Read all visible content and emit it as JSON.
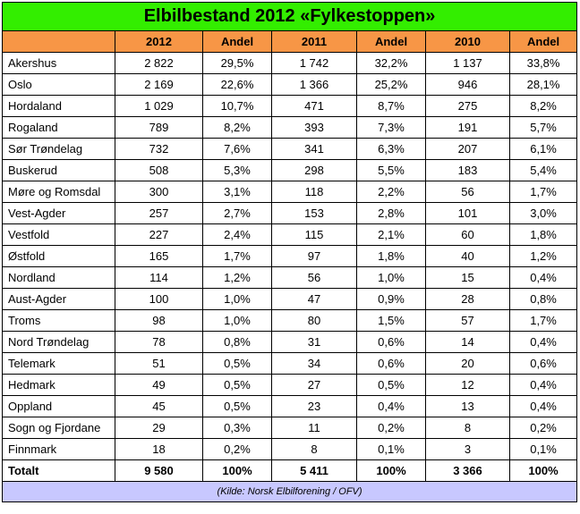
{
  "title": "Elbilbestand 2012 «Fylkestoppen»",
  "headers": [
    "",
    "2012",
    "Andel",
    "2011",
    "Andel",
    "2010",
    "Andel"
  ],
  "rows": [
    [
      "Akershus",
      "2 822",
      "29,5%",
      "1 742",
      "32,2%",
      "1 137",
      "33,8%"
    ],
    [
      "Oslo",
      "2 169",
      "22,6%",
      "1 366",
      "25,2%",
      "946",
      "28,1%"
    ],
    [
      "Hordaland",
      "1 029",
      "10,7%",
      "471",
      "8,7%",
      "275",
      "8,2%"
    ],
    [
      "Rogaland",
      "789",
      "8,2%",
      "393",
      "7,3%",
      "191",
      "5,7%"
    ],
    [
      "Sør Trøndelag",
      "732",
      "7,6%",
      "341",
      "6,3%",
      "207",
      "6,1%"
    ],
    [
      "Buskerud",
      "508",
      "5,3%",
      "298",
      "5,5%",
      "183",
      "5,4%"
    ],
    [
      "Møre og Romsdal",
      "300",
      "3,1%",
      "118",
      "2,2%",
      "56",
      "1,7%"
    ],
    [
      "Vest-Agder",
      "257",
      "2,7%",
      "153",
      "2,8%",
      "101",
      "3,0%"
    ],
    [
      "Vestfold",
      "227",
      "2,4%",
      "115",
      "2,1%",
      "60",
      "1,8%"
    ],
    [
      "Østfold",
      "165",
      "1,7%",
      "97",
      "1,8%",
      "40",
      "1,2%"
    ],
    [
      "Nordland",
      "114",
      "1,2%",
      "56",
      "1,0%",
      "15",
      "0,4%"
    ],
    [
      "Aust-Agder",
      "100",
      "1,0%",
      "47",
      "0,9%",
      "28",
      "0,8%"
    ],
    [
      "Troms",
      "98",
      "1,0%",
      "80",
      "1,5%",
      "57",
      "1,7%"
    ],
    [
      "Nord Trøndelag",
      "78",
      "0,8%",
      "31",
      "0,6%",
      "14",
      "0,4%"
    ],
    [
      "Telemark",
      "51",
      "0,5%",
      "34",
      "0,6%",
      "20",
      "0,6%"
    ],
    [
      "Hedmark",
      "49",
      "0,5%",
      "27",
      "0,5%",
      "12",
      "0,4%"
    ],
    [
      "Oppland",
      "45",
      "0,5%",
      "23",
      "0,4%",
      "13",
      "0,4%"
    ],
    [
      "Sogn og Fjordane",
      "29",
      "0,3%",
      "11",
      "0,2%",
      "8",
      "0,2%"
    ],
    [
      "Finnmark",
      "18",
      "0,2%",
      "8",
      "0,1%",
      "3",
      "0,1%"
    ]
  ],
  "total": [
    "Totalt",
    "9 580",
    "100%",
    "5 411",
    "100%",
    "3 366",
    "100%"
  ],
  "source": "(Kilde: Norsk Elbilforening / OFV)",
  "colors": {
    "title_bg": "#33ee00",
    "header_bg": "#f79646",
    "source_bg": "#c8c8ff"
  }
}
